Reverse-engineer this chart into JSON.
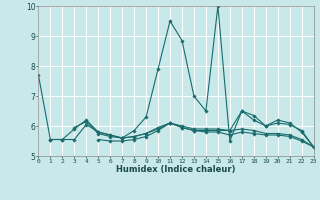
{
  "xlabel": "Humidex (Indice chaleur)",
  "xlim": [
    0,
    23
  ],
  "ylim": [
    5,
    10
  ],
  "yticks": [
    5,
    6,
    7,
    8,
    9,
    10
  ],
  "xticks": [
    0,
    1,
    2,
    3,
    4,
    5,
    6,
    7,
    8,
    9,
    10,
    11,
    12,
    13,
    14,
    15,
    16,
    17,
    18,
    19,
    20,
    21,
    22,
    23
  ],
  "bg_color": "#c8e8ea",
  "grid_color": "#b8d8da",
  "line_color": "#1a6b6b",
  "lines": [
    {
      "x": [
        0,
        1,
        2,
        3,
        4,
        5,
        6,
        7,
        8,
        9,
        10,
        11,
        12,
        13,
        14,
        15,
        16,
        17,
        18,
        19,
        20,
        21,
        22,
        23
      ],
      "y": [
        7.7,
        5.55,
        5.55,
        5.9,
        6.2,
        5.8,
        5.7,
        5.6,
        5.85,
        6.3,
        7.9,
        9.5,
        8.85,
        7.0,
        6.5,
        10.0,
        5.5,
        6.5,
        6.2,
        6.0,
        6.2,
        6.1,
        5.8,
        5.3
      ]
    },
    {
      "x": [
        1,
        2,
        3,
        4,
        5,
        6,
        7,
        8,
        9,
        10,
        11,
        12,
        13,
        14,
        15,
        16,
        17,
        18,
        19,
        20,
        21,
        22,
        23
      ],
      "y": [
        5.55,
        5.55,
        5.55,
        6.05,
        5.8,
        5.7,
        5.6,
        5.65,
        5.75,
        5.95,
        6.1,
        5.95,
        5.85,
        5.85,
        5.85,
        5.85,
        5.9,
        5.85,
        5.75,
        5.75,
        5.7,
        5.55,
        5.3
      ]
    },
    {
      "x": [
        3,
        4,
        5,
        6,
        7,
        8,
        9,
        10,
        11,
        12,
        13,
        14,
        15,
        16,
        17,
        18,
        19,
        20,
        21,
        22,
        23
      ],
      "y": [
        5.95,
        6.15,
        5.75,
        5.65,
        5.6,
        5.65,
        5.75,
        5.9,
        6.1,
        6.0,
        5.9,
        5.9,
        5.9,
        5.85,
        6.5,
        6.35,
        6.0,
        6.1,
        6.05,
        5.85,
        5.3
      ]
    },
    {
      "x": [
        5,
        6,
        7,
        8,
        9,
        10,
        11,
        12,
        13,
        14,
        15,
        16,
        17,
        18,
        19,
        20,
        21,
        22,
        23
      ],
      "y": [
        5.55,
        5.5,
        5.5,
        5.55,
        5.65,
        5.85,
        6.1,
        5.95,
        5.85,
        5.8,
        5.8,
        5.7,
        5.8,
        5.75,
        5.7,
        5.7,
        5.65,
        5.5,
        5.3
      ]
    }
  ]
}
